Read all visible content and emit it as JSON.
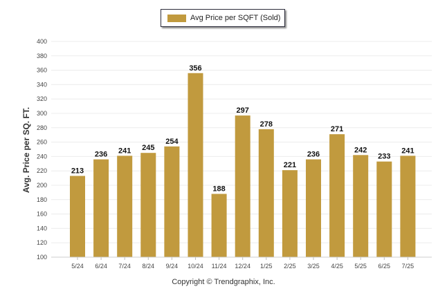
{
  "chart_data": {
    "type": "bar",
    "categories": [
      "5/24",
      "6/24",
      "7/24",
      "8/24",
      "9/24",
      "10/24",
      "11/24",
      "12/24",
      "1/25",
      "2/25",
      "3/25",
      "4/25",
      "5/25",
      "6/25",
      "7/25"
    ],
    "series": [
      {
        "name": "Avg Price per SQFT (Sold)",
        "color": "#c19a3e",
        "values": [
          213,
          236,
          241,
          245,
          254,
          356,
          188,
          297,
          278,
          221,
          236,
          271,
          242,
          233,
          241
        ]
      }
    ],
    "ylabel": "Avg. Price per SQ. FT.",
    "xlabel": "",
    "ylim": [
      100,
      400
    ],
    "ytick_step": 20,
    "grid": true,
    "legend_position": "top-center",
    "data_labels": true
  },
  "footer": {
    "copyright": "Copyright © Trendgraphix, Inc."
  }
}
